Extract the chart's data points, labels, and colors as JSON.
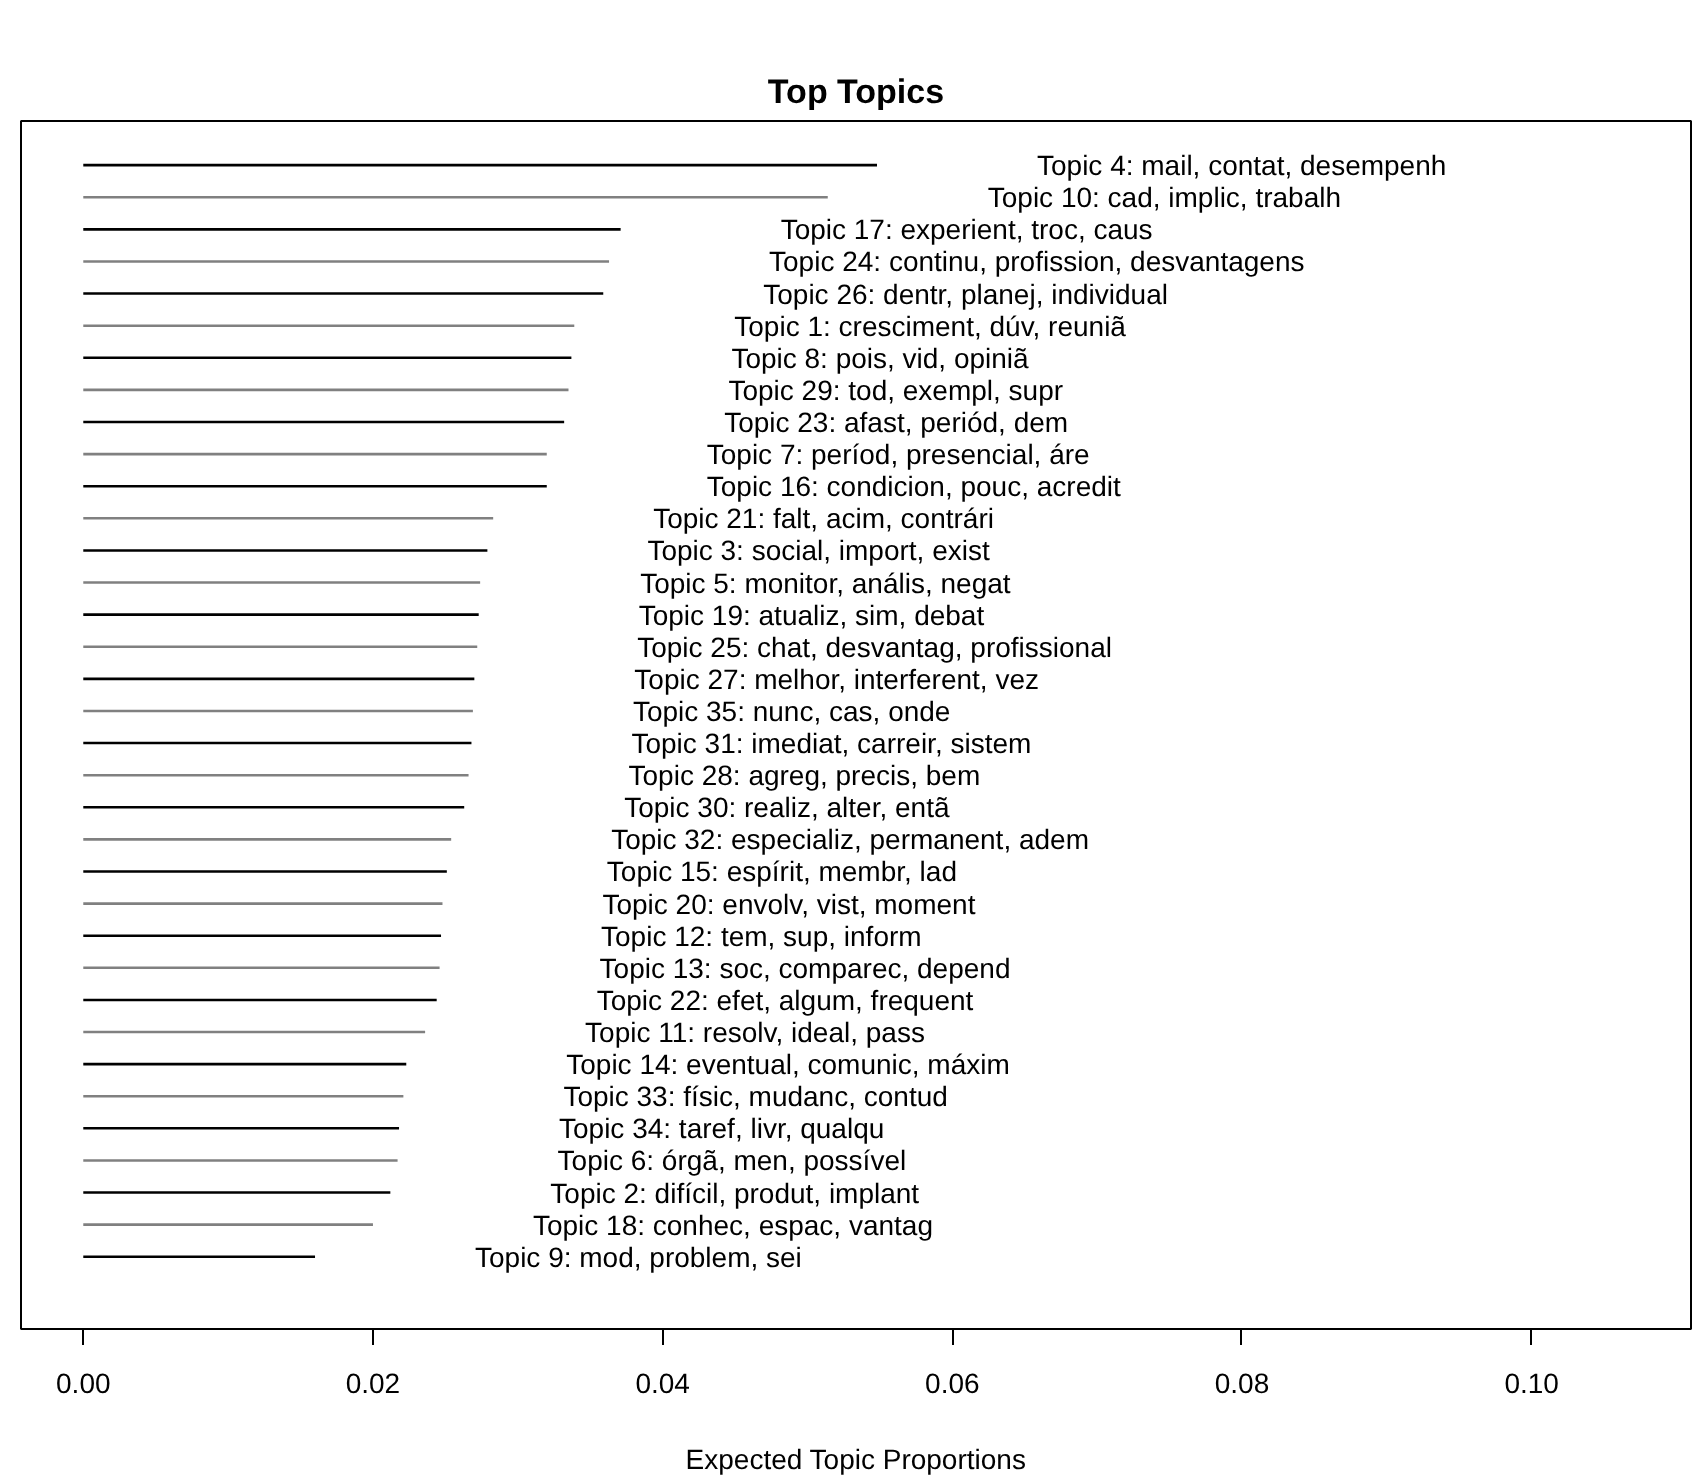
{
  "chart_data": {
    "type": "bar",
    "orientation": "horizontal",
    "title": "Top Topics",
    "xlabel": "Expected Topic Proportions",
    "categories": [
      "Topic 4: mail, contat, desempenh",
      "Topic 10: cad, implic, trabalh",
      "Topic 17: experient, troc, caus",
      "Topic 24: continu, profission, desvantagens",
      "Topic 26: dentr, planej, individual",
      "Topic 1: cresciment, dúv, reuniã",
      "Topic 8: pois, vid, opiniã",
      "Topic 29: tod, exempl, supr",
      "Topic 23: afast, periód, dem",
      "Topic 7: períod, presencial, áre",
      "Topic 16: condicion, pouc, acredit",
      "Topic 21: falt, acim, contrári",
      "Topic 3: social, import, exist",
      "Topic 5: monitor, anális, negat",
      "Topic 19: atualiz, sim, debat",
      "Topic 25: chat, desvantag, profissional",
      "Topic 27: melhor, interferent, vez",
      "Topic 35: nunc, cas, onde",
      "Topic 31: imediat, carreir, sistem",
      "Topic 28: agreg, precis, bem",
      "Topic 30: realiz, alter, entã",
      "Topic 32: especializ, permanent, adem",
      "Topic 15: espírit, membr, lad",
      "Topic 20: envolv, vist, moment",
      "Topic 12: tem, sup, inform",
      "Topic 13: soc, comparec, depend",
      "Topic 22: efet, algum, frequent",
      "Topic 11: resolv, ideal, pass",
      "Topic 14: eventual, comunic, máxim",
      "Topic 33: físic, mudanc, contud",
      "Topic 34: taref, livr, qualqu",
      "Topic 6: órgã, men, possível",
      "Topic 2: difícil, produt, implant",
      "Topic 18: conhec, espac, vantag",
      "Topic 9: mod, problem, sei"
    ],
    "values": [
      0.0548,
      0.0514,
      0.0371,
      0.0363,
      0.0359,
      0.0339,
      0.0337,
      0.0335,
      0.0332,
      0.032,
      0.032,
      0.0283,
      0.0279,
      0.0274,
      0.0273,
      0.0272,
      0.027,
      0.0269,
      0.0268,
      0.0266,
      0.0263,
      0.0254,
      0.0251,
      0.0248,
      0.0247,
      0.0246,
      0.0244,
      0.0236,
      0.0223,
      0.0221,
      0.0218,
      0.0217,
      0.0212,
      0.02,
      0.016
    ],
    "colors": [
      "#000000",
      "#808080",
      "#000000",
      "#808080",
      "#000000",
      "#808080",
      "#000000",
      "#808080",
      "#000000",
      "#808080",
      "#000000",
      "#808080",
      "#000000",
      "#808080",
      "#000000",
      "#808080",
      "#000000",
      "#808080",
      "#000000",
      "#808080",
      "#000000",
      "#808080",
      "#000000",
      "#808080",
      "#000000",
      "#808080",
      "#000000",
      "#808080",
      "#000000",
      "#808080",
      "#000000",
      "#808080",
      "#000000",
      "#808080",
      "#000000"
    ],
    "xlim": [
      -0.0043,
      0.111
    ],
    "xticks": [
      {
        "value": 0,
        "label": "0.00"
      },
      {
        "value": 0.02,
        "label": "0.02"
      },
      {
        "value": 0.04,
        "label": "0.04"
      },
      {
        "value": 0.06,
        "label": "0.06"
      },
      {
        "value": 0.08,
        "label": "0.08"
      },
      {
        "value": 0.1,
        "label": "0.10"
      }
    ],
    "tick_labels": "x",
    "grid": false
  }
}
